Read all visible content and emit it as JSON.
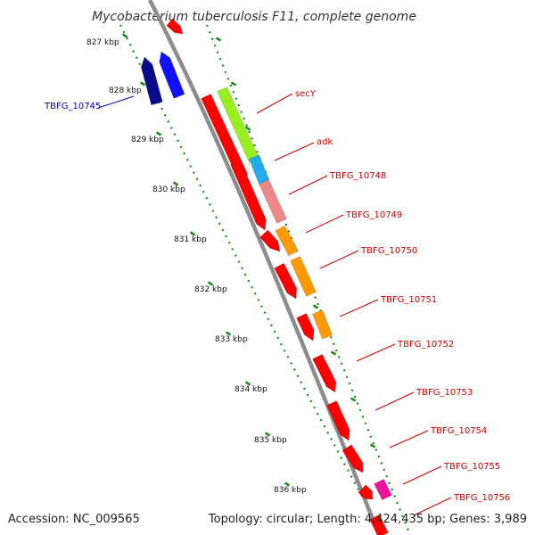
{
  "title": "Mycobacterium tuberculosis F11, complete genome",
  "footer": {
    "accession": "Accession: NC_009565",
    "topology": "Topology: circular; Length: 4,424,435 bp; Genes: 3,989"
  },
  "ticks": [
    {
      "label": "827 kbp"
    },
    {
      "label": "828 kbp"
    },
    {
      "label": "829 kbp"
    },
    {
      "label": "830 kbp"
    },
    {
      "label": "831 kbp"
    },
    {
      "label": "832 kbp"
    },
    {
      "label": "833 kbp"
    },
    {
      "label": "834 kbp"
    },
    {
      "label": "835 kbp"
    },
    {
      "label": "836 kbp"
    }
  ],
  "gene_labels": [
    {
      "text": "TBFG_10745",
      "color": "#0000bb"
    },
    {
      "text": "secY",
      "color": "#cc0000"
    },
    {
      "text": "adk",
      "color": "#cc0000"
    },
    {
      "text": "TBFG_10748",
      "color": "#cc0000"
    },
    {
      "text": "TBFG_10749",
      "color": "#cc0000"
    },
    {
      "text": "TBFG_10750",
      "color": "#cc0000"
    },
    {
      "text": "TBFG_10751",
      "color": "#cc0000"
    },
    {
      "text": "TBFG_10752",
      "color": "#cc0000"
    },
    {
      "text": "TBFG_10753",
      "color": "#cc0000"
    },
    {
      "text": "TBFG_10754",
      "color": "#cc0000"
    },
    {
      "text": "TBFG_10755",
      "color": "#cc0000"
    },
    {
      "text": "TBFG_10756",
      "color": "#cc0000"
    }
  ],
  "colors": {
    "backbone": "#8c8c8c",
    "tick_dots": "#1a8a1a",
    "cds_forward": "#ff0000",
    "reverse_dark": "#0a0a8c",
    "reverse_blue": "#1010ff",
    "lime": "#99ee22",
    "cyan": "#22aaee",
    "pink": "#ee8888",
    "orange": "#ff9900",
    "magenta": "#ee1199"
  }
}
